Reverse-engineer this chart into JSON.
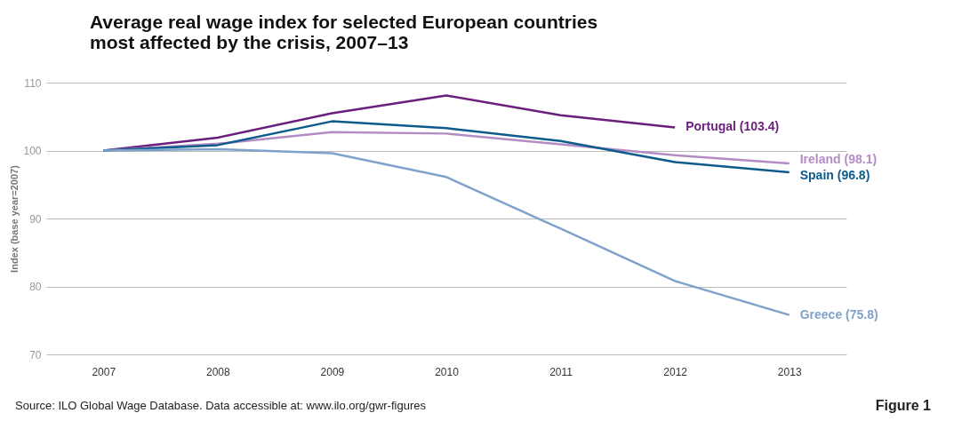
{
  "chart_data": {
    "type": "line",
    "title": "Average real wage index for selected European countries\nmost affected by the crisis, 2007–13",
    "ylabel": "Index (base year=2007)",
    "categories": [
      "2007",
      "2008",
      "2009",
      "2010",
      "2011",
      "2012",
      "2013"
    ],
    "series": [
      {
        "name": "Portugal (103.4)",
        "color": "#6b1f7c",
        "values": [
          100,
          101.9,
          105.5,
          108.1,
          105.2,
          103.4,
          null
        ]
      },
      {
        "name": "Ireland (98.1)",
        "color": "#b48cc4",
        "values": [
          100,
          101.0,
          102.7,
          102.5,
          100.9,
          99.3,
          98.1
        ]
      },
      {
        "name": "Spain (96.8)",
        "color": "#0d5b8c",
        "values": [
          100,
          100.8,
          104.3,
          103.3,
          101.4,
          98.3,
          96.8
        ]
      },
      {
        "name": "Greece (75.8)",
        "color": "#7fa2cb",
        "values": [
          100,
          100.2,
          99.6,
          96.1,
          88.5,
          80.8,
          75.8
        ]
      }
    ],
    "ylim": [
      70,
      110
    ],
    "yticks": [
      70,
      80,
      90,
      100,
      110
    ],
    "grid": "y",
    "legend": false,
    "marker": "none",
    "line_style": "solid",
    "annotations": [
      "Source: ILO Global Wage Database. Data accessible at: www.ilo.org/gwr-figures",
      "Figure 1"
    ]
  }
}
